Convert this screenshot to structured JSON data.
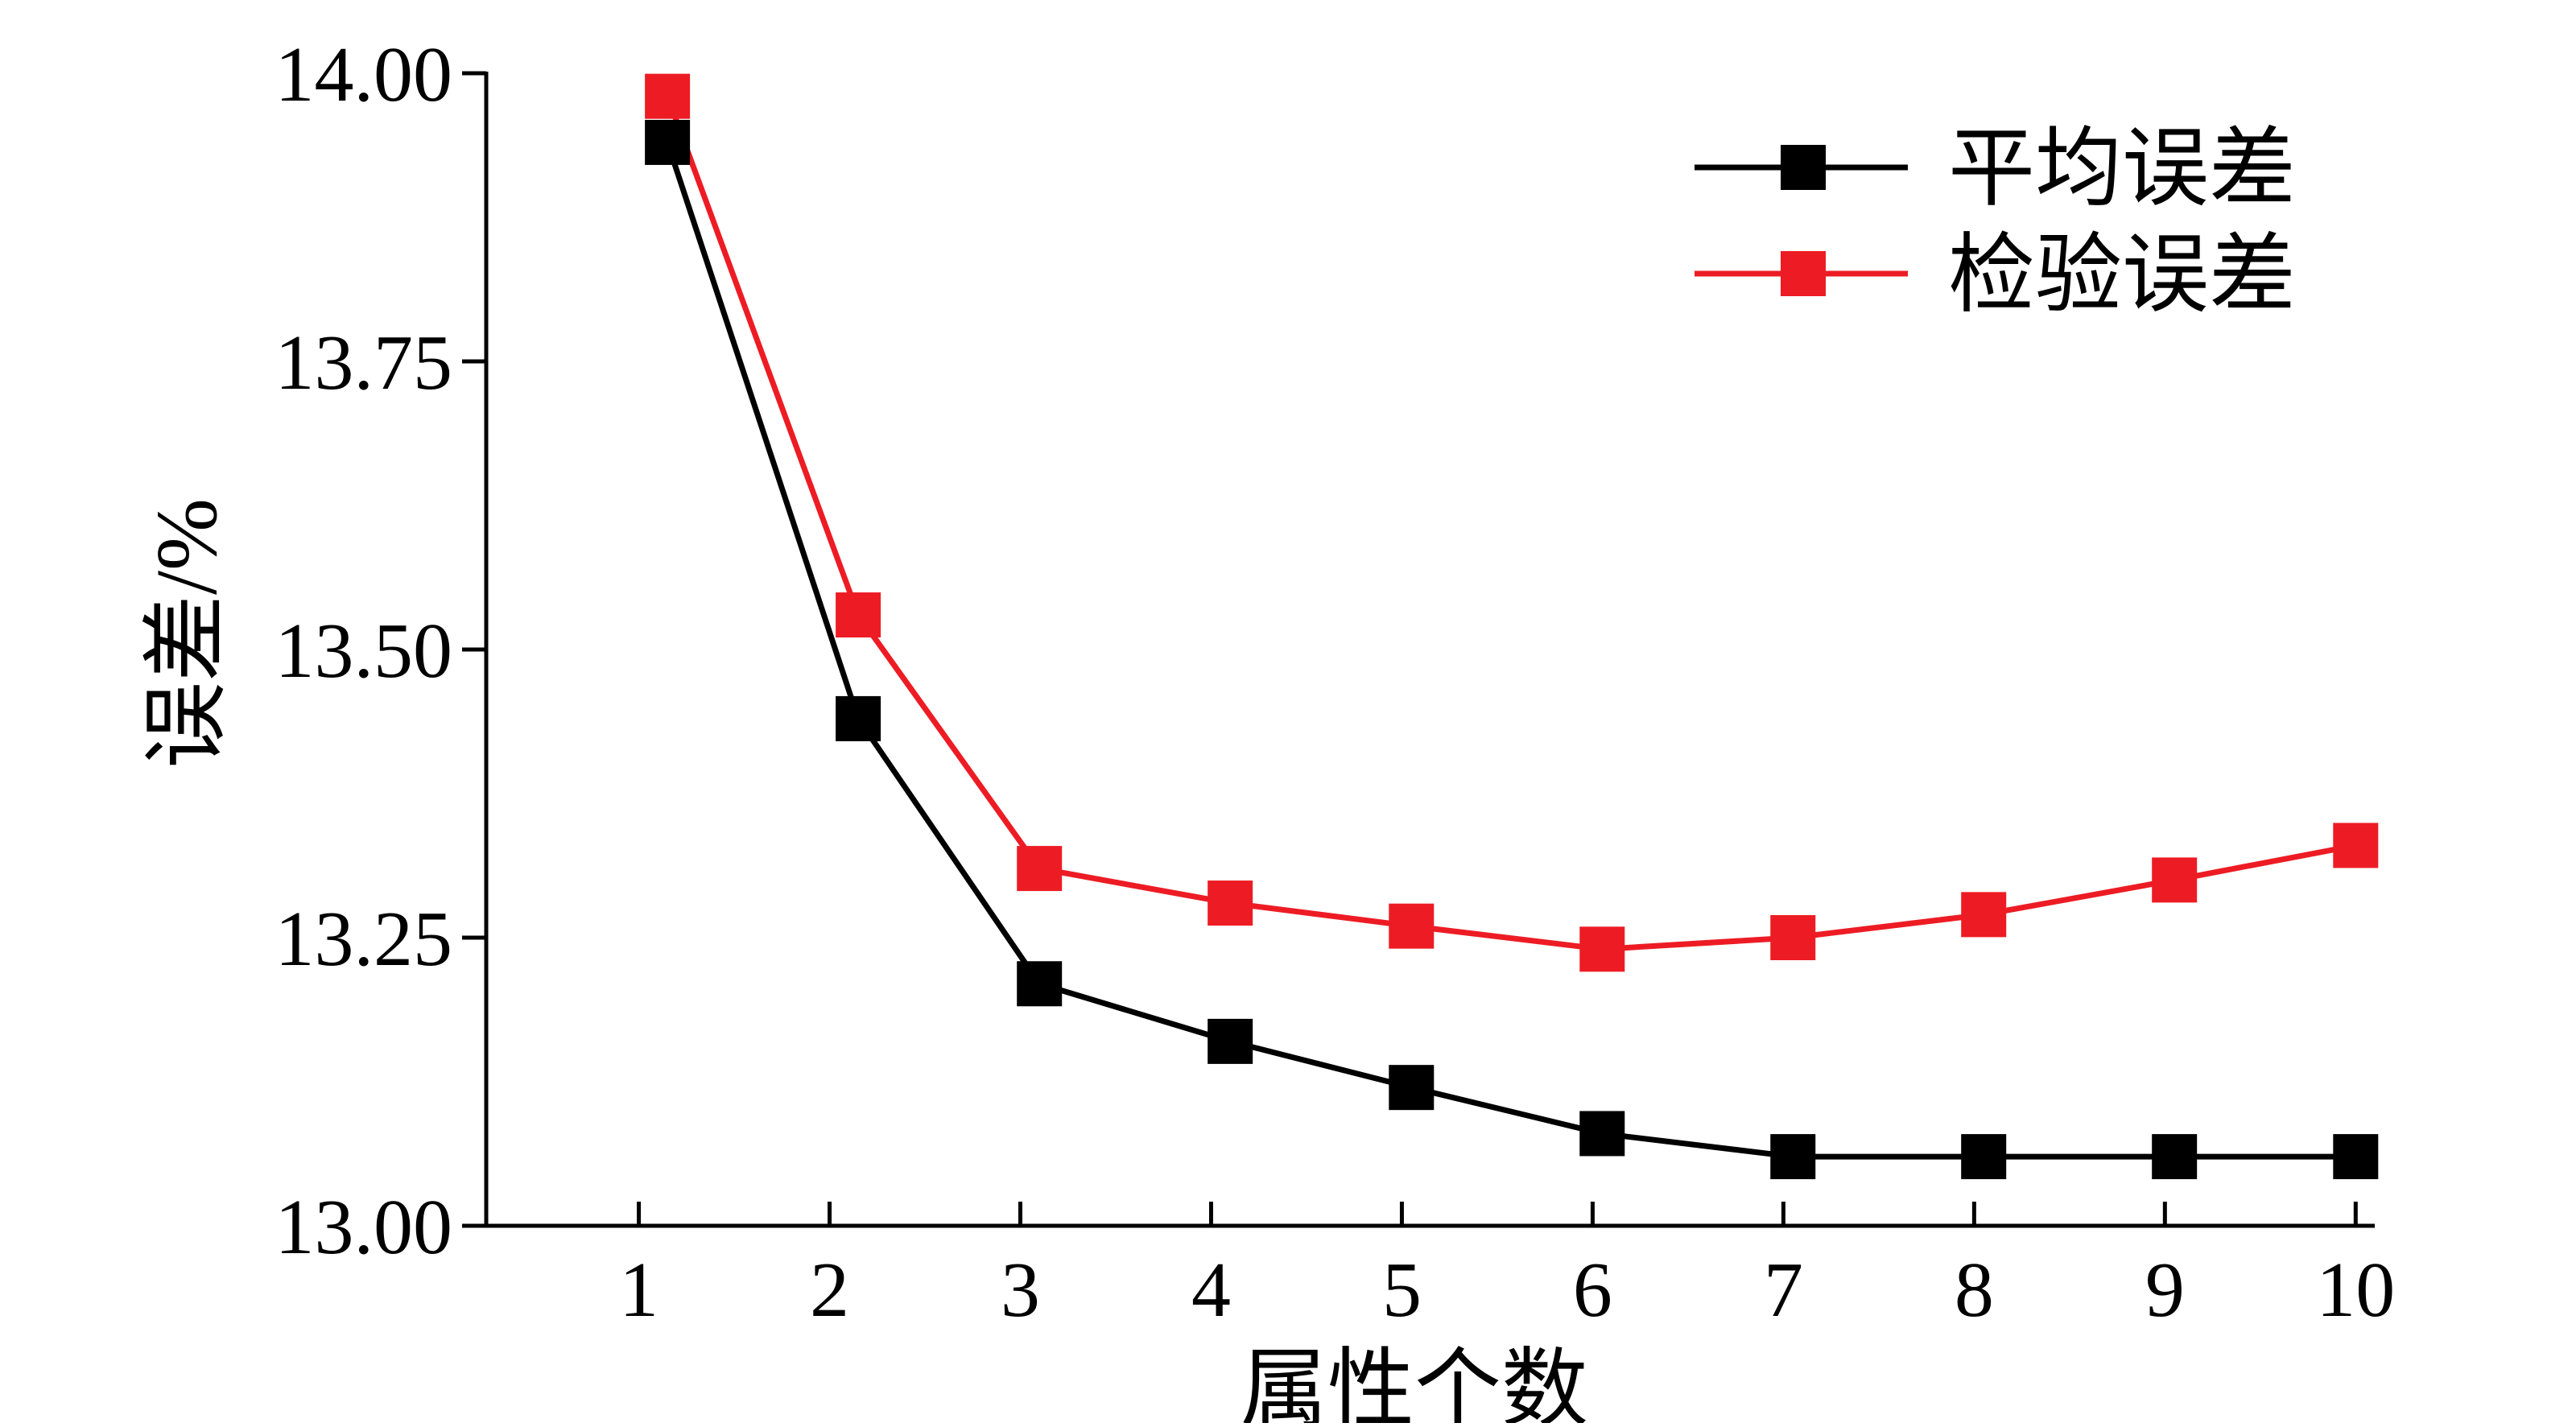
{
  "chart_data": {
    "type": "line",
    "title": "",
    "xlabel": "属性个数",
    "ylabel": "误差/%",
    "x": [
      1,
      2,
      3,
      4,
      5,
      6,
      7,
      8,
      9,
      10
    ],
    "xlim": [
      0.2,
      10.1
    ],
    "ylim": [
      13.0,
      14.0
    ],
    "yticks": [
      "13.00",
      "13.25",
      "13.50",
      "13.75",
      "14.00"
    ],
    "xticks": [
      "1",
      "2",
      "3",
      "4",
      "5",
      "6",
      "7",
      "8",
      "9",
      "10"
    ],
    "grid": false,
    "legend_position": "top-right",
    "series": [
      {
        "name": "平均误差",
        "color": "#000000",
        "marker": "square",
        "x": [
          1.15,
          2.15,
          3.1,
          4.1,
          5.05,
          6.05,
          7.05,
          8.05,
          9.05,
          10.0
        ],
        "values": [
          13.94,
          13.44,
          13.21,
          13.16,
          13.12,
          13.08,
          13.06,
          13.06,
          13.06,
          13.06
        ]
      },
      {
        "name": "检验误差",
        "color": "#ed1c24",
        "marker": "square",
        "x": [
          1.15,
          2.15,
          3.1,
          4.1,
          5.05,
          6.05,
          7.05,
          8.05,
          9.05,
          10.0
        ],
        "values": [
          13.98,
          13.53,
          13.31,
          13.28,
          13.26,
          13.24,
          13.25,
          13.27,
          13.3,
          13.33
        ]
      }
    ]
  }
}
